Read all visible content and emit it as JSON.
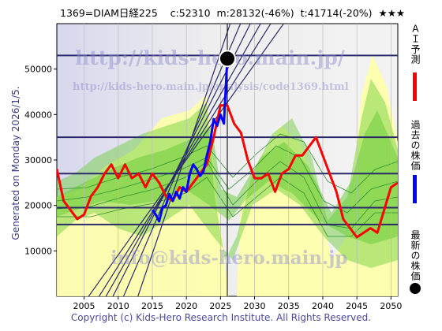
{
  "header": {
    "title": "1369=DIAM日経225    c:52310  m:28132(-46%)  t:41714(-20%)  ★★★"
  },
  "side": {
    "generated": "Generated on Monday 2026/1/5.",
    "ai_label": "ＡＩ予測",
    "past_label": "過去の株価",
    "latest_label": "最新の株価"
  },
  "footer": {
    "copyright": "Copyright (c) Kids-Hero Research Institute. All Rights Reserved."
  },
  "watermarks": {
    "url1": "http://kids-hero.main.jp/",
    "url2": "http://kids-hero.main.jp/analysis/code1369.html",
    "url3": "info@kids-hero.main.jp"
  },
  "colors": {
    "ai_prediction": "#ff0000",
    "past_price": "#0000ff",
    "latest_price": "#000000",
    "bands_green": "#66cc33",
    "bands_yellow": "#ffffaa",
    "guide_lines": "#2a2a6a"
  },
  "chart_data": {
    "type": "line",
    "xlim": [
      2001,
      2051
    ],
    "ylim": [
      0,
      60000
    ],
    "x_ticks": [
      2005,
      2010,
      2015,
      2020,
      2025,
      2030,
      2035,
      2040,
      2045,
      2050
    ],
    "y_ticks": [
      10000,
      20000,
      30000,
      40000,
      50000
    ],
    "horizontal_levels": [
      53000,
      35000,
      27000,
      19500,
      15800
    ],
    "current_marker": {
      "x": 2026.0,
      "y": 52310
    },
    "series": [
      {
        "name": "ＡＩ予測",
        "x": [
          2001,
          2002,
          2003,
          2004,
          2005,
          2006,
          2007,
          2008,
          2009,
          2010,
          2011,
          2012,
          2013,
          2014,
          2015,
          2016,
          2017,
          2018,
          2019,
          2020,
          2021,
          2022,
          2023,
          2024,
          2025,
          2026,
          2027,
          2028,
          2029,
          2030,
          2031,
          2032,
          2033,
          2034,
          2035,
          2036,
          2037,
          2038,
          2039,
          2040,
          2041,
          2042,
          2043,
          2044,
          2045,
          2046,
          2047,
          2048,
          2049,
          2050,
          2051
        ],
        "values": [
          28000,
          21000,
          19000,
          17000,
          18000,
          22000,
          24000,
          27000,
          29000,
          26000,
          29000,
          26000,
          27000,
          24000,
          27000,
          25000,
          22000,
          21000,
          24000,
          23000,
          25000,
          27000,
          29000,
          35000,
          42000,
          42000,
          38000,
          36000,
          30000,
          26000,
          26000,
          27000,
          23000,
          27000,
          28000,
          31000,
          31000,
          33000,
          35000,
          31000,
          27000,
          23000,
          17000,
          15000,
          13000,
          14000,
          15000,
          14000,
          19000,
          24000,
          25000
        ]
      },
      {
        "name": "過去の株価",
        "x": [
          2015.0,
          2015.5,
          2016.0,
          2016.5,
          2017.0,
          2017.5,
          2018.0,
          2018.5,
          2019.0,
          2019.5,
          2020.0,
          2020.5,
          2021.0,
          2021.5,
          2022.0,
          2022.5,
          2023.0,
          2023.5,
          2024.0,
          2024.5,
          2025.0,
          2025.5,
          2026.0
        ],
        "values": [
          19000,
          18000,
          16500,
          19500,
          20000,
          22500,
          21000,
          23000,
          21500,
          24000,
          23000,
          27000,
          29000,
          28000,
          26500,
          27500,
          31000,
          34000,
          39000,
          37500,
          40000,
          38000,
          52310
        ]
      }
    ]
  }
}
